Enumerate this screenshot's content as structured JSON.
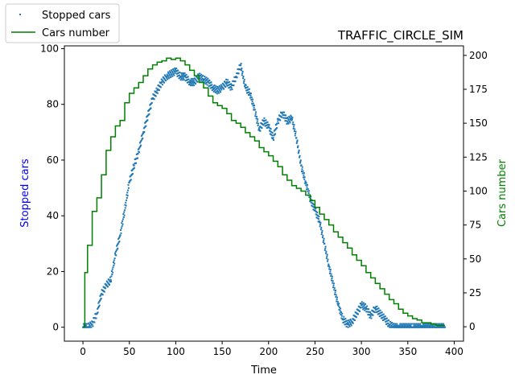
{
  "chart_data": {
    "type": "scatter",
    "title": "TRAFFIC_CIRCLE_SIM",
    "xlabel": "Time",
    "ylabel_left": "Stopped cars",
    "ylabel_right": "Cars number",
    "xlim": [
      -20,
      410
    ],
    "ylim_left": [
      -5,
      101
    ],
    "ylim_right": [
      -10.6,
      207
    ],
    "xticks": [
      0,
      50,
      100,
      150,
      200,
      250,
      300,
      350,
      400
    ],
    "yticks_left": [
      0,
      20,
      40,
      60,
      80,
      100
    ],
    "yticks_right": [
      0,
      25,
      50,
      75,
      100,
      125,
      150,
      175,
      200
    ],
    "grid": false,
    "legend_position": "top-left (outside axes)",
    "colors": {
      "stopped": "#1f77b4",
      "cars": "#008000",
      "ylabel_left": "#0000ff",
      "ylabel_right": "#008000"
    },
    "series": [
      {
        "name": "Stopped cars",
        "kind": "scatter",
        "axis": "left",
        "x": [
          0,
          5,
          10,
          15,
          20,
          25,
          30,
          35,
          40,
          45,
          50,
          55,
          60,
          65,
          70,
          75,
          80,
          85,
          90,
          95,
          100,
          105,
          110,
          115,
          120,
          125,
          130,
          135,
          140,
          145,
          150,
          155,
          160,
          165,
          170,
          175,
          180,
          185,
          190,
          195,
          200,
          205,
          210,
          215,
          220,
          225,
          230,
          235,
          240,
          245,
          250,
          255,
          260,
          265,
          270,
          275,
          280,
          285,
          290,
          295,
          300,
          305,
          310,
          315,
          320,
          325,
          330,
          335,
          340,
          345,
          350,
          355,
          360,
          365,
          370,
          375,
          380,
          385,
          390
        ],
        "y": [
          0,
          0,
          1,
          5,
          12,
          15,
          17,
          26,
          33,
          42,
          52,
          58,
          63,
          70,
          76,
          82,
          85,
          88,
          90,
          91,
          92,
          90,
          90,
          88,
          88,
          90,
          89,
          88,
          86,
          85,
          86,
          88,
          86,
          90,
          94,
          86,
          84,
          78,
          71,
          74,
          72,
          68,
          74,
          77,
          74,
          75,
          68,
          58,
          52,
          46,
          42,
          38,
          30,
          22,
          15,
          8,
          3,
          1,
          2,
          5,
          8,
          7,
          4,
          7,
          5,
          3,
          1,
          0,
          0,
          0,
          0,
          0,
          0,
          0,
          0,
          0,
          0,
          0,
          0
        ]
      },
      {
        "name": "Cars number",
        "kind": "line",
        "axis": "right",
        "x": [
          0,
          2,
          5,
          10,
          15,
          20,
          25,
          30,
          35,
          40,
          45,
          50,
          55,
          60,
          65,
          70,
          75,
          80,
          85,
          90,
          95,
          100,
          105,
          110,
          115,
          120,
          125,
          130,
          135,
          140,
          145,
          150,
          155,
          160,
          165,
          170,
          175,
          180,
          185,
          190,
          195,
          200,
          205,
          210,
          215,
          220,
          225,
          230,
          235,
          240,
          245,
          250,
          255,
          260,
          265,
          270,
          275,
          280,
          285,
          290,
          295,
          300,
          305,
          310,
          315,
          320,
          325,
          330,
          335,
          340,
          345,
          350,
          355,
          360,
          365,
          370,
          375,
          380,
          385,
          390
        ],
        "y": [
          0,
          40,
          60,
          85,
          95,
          112,
          130,
          140,
          148,
          152,
          165,
          172,
          176,
          180,
          185,
          190,
          193,
          195,
          196,
          198,
          197,
          198,
          196,
          193,
          189,
          185,
          180,
          176,
          170,
          165,
          163,
          161,
          157,
          152,
          150,
          147,
          143,
          140,
          137,
          132,
          129,
          126,
          122,
          118,
          112,
          108,
          104,
          102,
          100,
          97,
          93,
          88,
          83,
          79,
          75,
          70,
          66,
          62,
          58,
          53,
          49,
          45,
          40,
          36,
          32,
          28,
          24,
          20,
          17,
          13,
          10,
          8,
          6,
          5,
          3,
          3,
          2,
          1,
          1,
          1
        ]
      }
    ]
  }
}
